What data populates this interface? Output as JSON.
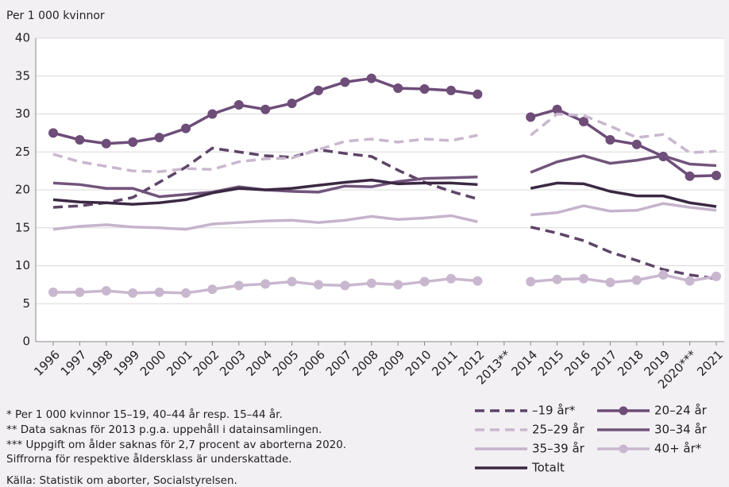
{
  "chart_data": {
    "type": "line",
    "y_label": "Per 1 000 kvinnor",
    "categories": [
      "1996",
      "1997",
      "1998",
      "1999",
      "2000",
      "2001",
      "2002",
      "2003",
      "2004",
      "2005",
      "2006",
      "2007",
      "2008",
      "2009",
      "2010",
      "2011",
      "2012",
      "2013**",
      "2014",
      "2015",
      "2016",
      "2017",
      "2018",
      "2019",
      "2020***",
      "2021"
    ],
    "ylim": [
      0,
      40
    ],
    "yticks": [
      0,
      5,
      10,
      15,
      20,
      25,
      30,
      35,
      40
    ],
    "grid": true,
    "series": [
      {
        "name": "–19 år*",
        "color": "#5e4468",
        "dashed": true,
        "markers": false,
        "values": [
          17.7,
          17.9,
          18.3,
          19.0,
          21.0,
          23.0,
          25.5,
          25.0,
          24.5,
          24.3,
          25.3,
          24.8,
          24.4,
          22.6,
          21.0,
          19.8,
          18.8,
          null,
          15.1,
          14.3,
          13.3,
          11.8,
          10.7,
          9.5,
          8.8,
          8.3
        ]
      },
      {
        "name": "20–24 år",
        "color": "#6e4d79",
        "dashed": false,
        "markers": true,
        "values": [
          27.5,
          26.6,
          26.1,
          26.3,
          26.9,
          28.1,
          30.0,
          31.2,
          30.6,
          31.4,
          33.1,
          34.2,
          34.7,
          33.4,
          33.3,
          33.1,
          32.6,
          null,
          29.6,
          30.6,
          29.0,
          26.6,
          26.0,
          24.4,
          21.8,
          21.9
        ]
      },
      {
        "name": "25–29 år",
        "color": "#c9b7cf",
        "dashed": true,
        "markers": false,
        "values": [
          24.7,
          23.7,
          23.1,
          22.5,
          22.4,
          22.8,
          22.7,
          23.7,
          24.1,
          24.2,
          25.3,
          26.4,
          26.7,
          26.3,
          26.7,
          26.5,
          27.2,
          null,
          27.2,
          30.0,
          29.8,
          28.4,
          26.9,
          27.3,
          24.9,
          25.1
        ]
      },
      {
        "name": "30–34 år",
        "color": "#71547b",
        "dashed": false,
        "markers": false,
        "values": [
          20.9,
          20.7,
          20.2,
          20.2,
          19.1,
          19.4,
          19.7,
          20.4,
          20.0,
          19.8,
          19.7,
          20.5,
          20.4,
          21.1,
          21.5,
          21.6,
          21.7,
          null,
          22.3,
          23.7,
          24.5,
          23.5,
          23.9,
          24.5,
          23.4,
          23.2
        ]
      },
      {
        "name": "35–39 år",
        "color": "#c6b3cc",
        "dashed": false,
        "markers": false,
        "values": [
          14.8,
          15.2,
          15.4,
          15.1,
          15.0,
          14.8,
          15.5,
          15.7,
          15.9,
          16.0,
          15.7,
          16.0,
          16.5,
          16.1,
          16.3,
          16.6,
          15.8,
          null,
          16.7,
          17.0,
          17.9,
          17.2,
          17.3,
          18.2,
          17.7,
          17.3
        ]
      },
      {
        "name": "40+ år*",
        "color": "#c9b7cf",
        "dashed": false,
        "markers": true,
        "values": [
          6.5,
          6.5,
          6.7,
          6.4,
          6.5,
          6.4,
          6.9,
          7.4,
          7.6,
          7.9,
          7.5,
          7.4,
          7.7,
          7.5,
          7.9,
          8.3,
          8.0,
          null,
          7.9,
          8.2,
          8.3,
          7.8,
          8.1,
          8.8,
          8.0,
          8.6
        ]
      },
      {
        "name": "Totalt",
        "color": "#3b2843",
        "dashed": false,
        "markers": false,
        "values": [
          18.7,
          18.4,
          18.3,
          18.1,
          18.3,
          18.7,
          19.6,
          20.2,
          20.0,
          20.2,
          20.6,
          21.0,
          21.3,
          20.8,
          20.9,
          20.9,
          20.7,
          null,
          20.2,
          20.9,
          20.8,
          19.8,
          19.2,
          19.2,
          18.3,
          17.8
        ]
      }
    ],
    "notes": [
      "* Per 1 000 kvinnor 15–19, 40–44 år resp. 15–44 år.",
      "** Data saknas för 2013 p.g.a. uppehåll i datainsamlingen.",
      "*** Uppgift om ålder saknas för 2,7 procent av aborterna 2020.",
      "Siffrorna för respektive åldersklass är underskattade."
    ],
    "source": "Källa: Statistik om aborter, Socialstyrelsen."
  }
}
